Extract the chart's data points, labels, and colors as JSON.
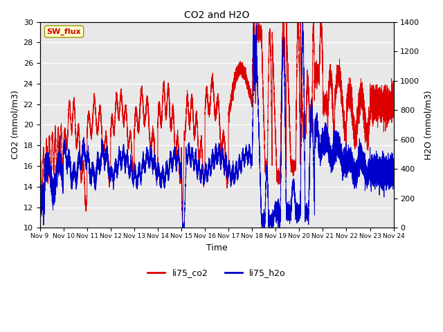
{
  "title": "CO2 and H2O",
  "xlabel": "Time",
  "ylabel_left": "CO2 (mmol/m3)",
  "ylabel_right": "H2O (mmol/m3)",
  "ylim_left": [
    10,
    30
  ],
  "ylim_right": [
    0,
    1400
  ],
  "co2_color": "#dd0000",
  "h2o_color": "#0000cc",
  "fig_bg_color": "#ffffff",
  "plot_bg_color": "#e8e8e8",
  "grid_color": "#ffffff",
  "sw_flux_label": "SW_flux",
  "sw_flux_bg": "#ffffcc",
  "sw_flux_border": "#999900",
  "sw_flux_text_color": "#cc0000",
  "legend_co2": "li75_co2",
  "legend_h2o": "li75_h2o",
  "yticks_left": [
    10,
    12,
    14,
    16,
    18,
    20,
    22,
    24,
    26,
    28,
    30
  ],
  "yticks_right": [
    0,
    200,
    400,
    600,
    800,
    1000,
    1200,
    1400
  ],
  "xtick_labels": [
    "Nov 9",
    "Nov 10",
    "Nov 11",
    "Nov 12",
    "Nov 13",
    "Nov 14",
    "Nov 15",
    "Nov 16",
    "Nov 17",
    "Nov 18",
    "Nov 19",
    "Nov 20",
    "Nov 21",
    "Nov 22",
    "Nov 23",
    "Nov 24"
  ]
}
